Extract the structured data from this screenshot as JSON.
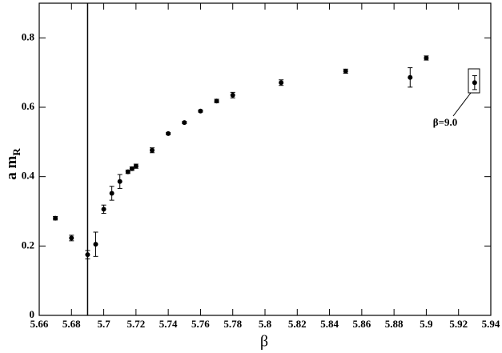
{
  "chart_data": {
    "type": "scatter",
    "xlabel": "β",
    "ylabel": {
      "text": "a m",
      "subscript": "R"
    },
    "x": [
      5.67,
      5.68,
      5.69,
      5.695,
      5.7,
      5.705,
      5.71,
      5.715,
      5.7175,
      5.72,
      5.73,
      5.74,
      5.75,
      5.76,
      5.77,
      5.78,
      5.81,
      5.85,
      5.89,
      5.9,
      5.93
    ],
    "values": [
      0.28,
      0.223,
      0.175,
      0.205,
      0.306,
      0.352,
      0.386,
      0.414,
      0.423,
      0.43,
      0.476,
      0.524,
      0.556,
      0.589,
      0.618,
      0.635,
      0.671,
      0.704,
      0.686,
      0.742,
      0.671
    ],
    "errors": [
      0.005,
      0.008,
      0.012,
      0.035,
      0.012,
      0.02,
      0.02,
      0.005,
      0.005,
      0.006,
      0.007,
      0.003,
      0.003,
      0.003,
      0.005,
      0.008,
      0.008,
      0.006,
      0.028,
      0.006,
      0.02
    ],
    "color": "#000000",
    "vline": 5.69,
    "annotation": "β=9.0",
    "xlim": [
      5.66,
      5.94
    ],
    "xticks": [
      5.66,
      5.68,
      5.7,
      5.72,
      5.74,
      5.76,
      5.78,
      5.8,
      5.82,
      5.84,
      5.86,
      5.88,
      5.9,
      5.92,
      5.94
    ],
    "ylim": [
      0,
      0.9
    ],
    "yticks": [
      0,
      0.2,
      0.4,
      0.6,
      0.8
    ]
  }
}
